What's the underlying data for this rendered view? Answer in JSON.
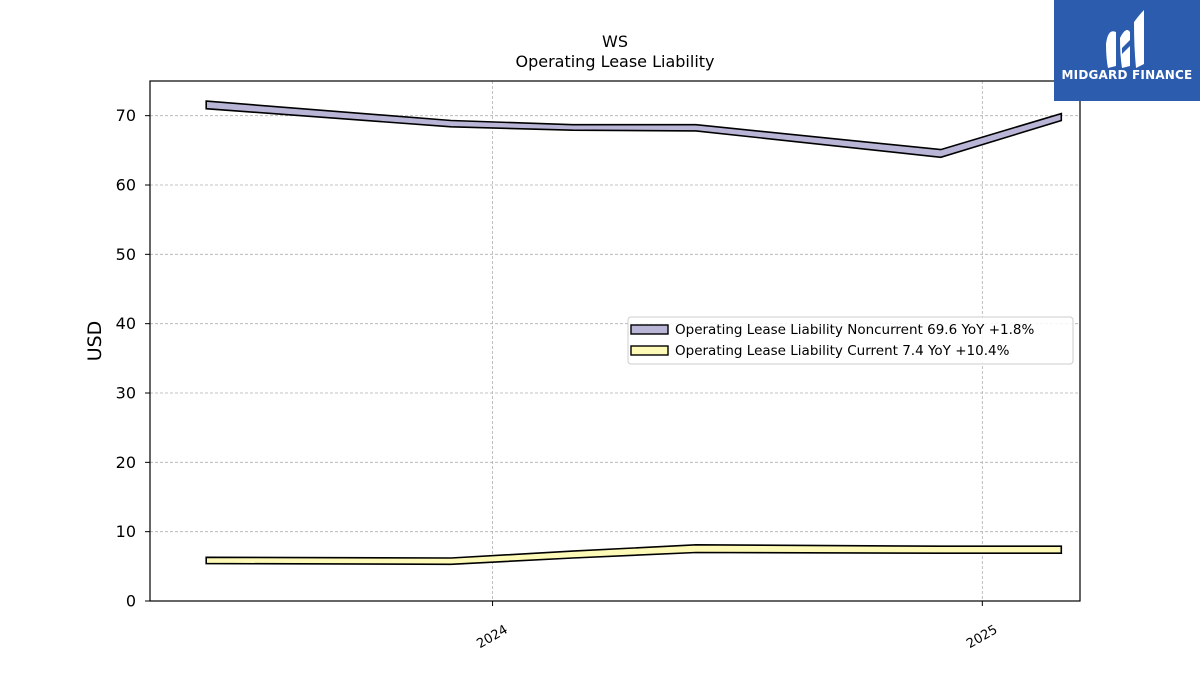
{
  "chart_data": {
    "type": "area",
    "title": "WS",
    "subtitle": "Operating Lease Liability",
    "ylabel": "USD",
    "xlabel": "",
    "ylim": [
      0,
      75
    ],
    "yticks": [
      0,
      10,
      20,
      30,
      40,
      50,
      60,
      70
    ],
    "xlim": [
      "2023-04-20",
      "2025-03-15"
    ],
    "xticks": [
      "2024-01-01",
      "2025-01-01"
    ],
    "xtick_labels": [
      "2024",
      "2025"
    ],
    "grid": true,
    "legend_position": "center-right",
    "series": [
      {
        "name": "Operating Lease Liability Noncurrent",
        "legend_label": "Operating Lease Liability Noncurrent  69.6 YoY +1.8%",
        "color": "#b8b5d6",
        "x": [
          "2023-06-01",
          "2023-12-01",
          "2024-03-01",
          "2024-06-01",
          "2024-12-01",
          "2025-03-01"
        ],
        "upper": [
          72.1,
          69.3,
          68.7,
          68.7,
          65.1,
          70.3
        ],
        "lower": [
          71.0,
          68.4,
          67.9,
          67.8,
          64.0,
          69.3
        ]
      },
      {
        "name": "Operating Lease Liability Current",
        "legend_label": "Operating Lease Liability Current  7.4 YoY +10.4%",
        "color": "#fdf9b6",
        "x": [
          "2023-06-01",
          "2023-12-01",
          "2024-03-01",
          "2024-06-01",
          "2024-12-01",
          "2025-03-01"
        ],
        "upper": [
          6.3,
          6.2,
          7.2,
          8.1,
          7.9,
          7.9
        ],
        "lower": [
          5.4,
          5.3,
          6.2,
          7.0,
          6.9,
          6.9
        ]
      }
    ]
  },
  "logo": {
    "text": "MIDGARD FINANCE",
    "icon": "midgard-finance-logo-icon",
    "background": "#2b5cad"
  }
}
